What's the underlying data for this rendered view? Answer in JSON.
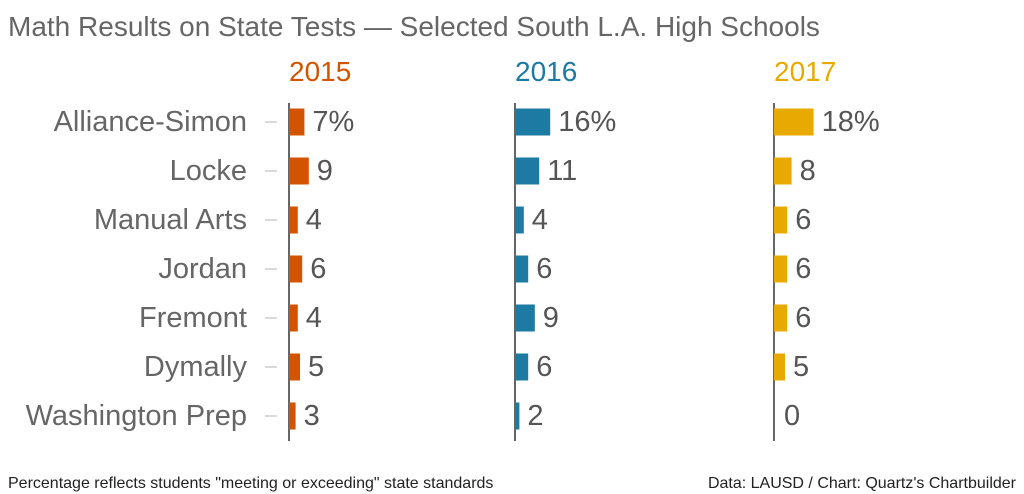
{
  "chart_data": {
    "type": "bar",
    "orientation": "horizontal",
    "title": "Math Results on State Tests — Selected South L.A. High Schools",
    "categories": [
      "Alliance-Simon",
      "Locke",
      "Manual Arts",
      "Jordan",
      "Fremont",
      "Dymally",
      "Washington Prep"
    ],
    "series": [
      {
        "name": "2015",
        "color": "#d35400",
        "values": [
          7,
          9,
          4,
          6,
          4,
          5,
          3
        ],
        "labels": [
          "7%",
          "9",
          "4",
          "6",
          "4",
          "5",
          "3"
        ]
      },
      {
        "name": "2016",
        "color": "#1c7aa3",
        "values": [
          16,
          11,
          4,
          6,
          9,
          6,
          2
        ],
        "labels": [
          "16%",
          "11",
          "4",
          "6",
          "9",
          "6",
          "2"
        ]
      },
      {
        "name": "2017",
        "color": "#e8a900",
        "values": [
          18,
          8,
          6,
          6,
          6,
          5,
          0
        ],
        "labels": [
          "18%",
          "8",
          "6",
          "6",
          "6",
          "5",
          "0"
        ]
      }
    ],
    "unit": "%",
    "grid": false,
    "legend": "none"
  },
  "footer": {
    "note": "Percentage reflects students \"meeting or exceeding\" state standards",
    "source": "Data: LAUSD / Chart: Quartz's Chartbuilder"
  }
}
